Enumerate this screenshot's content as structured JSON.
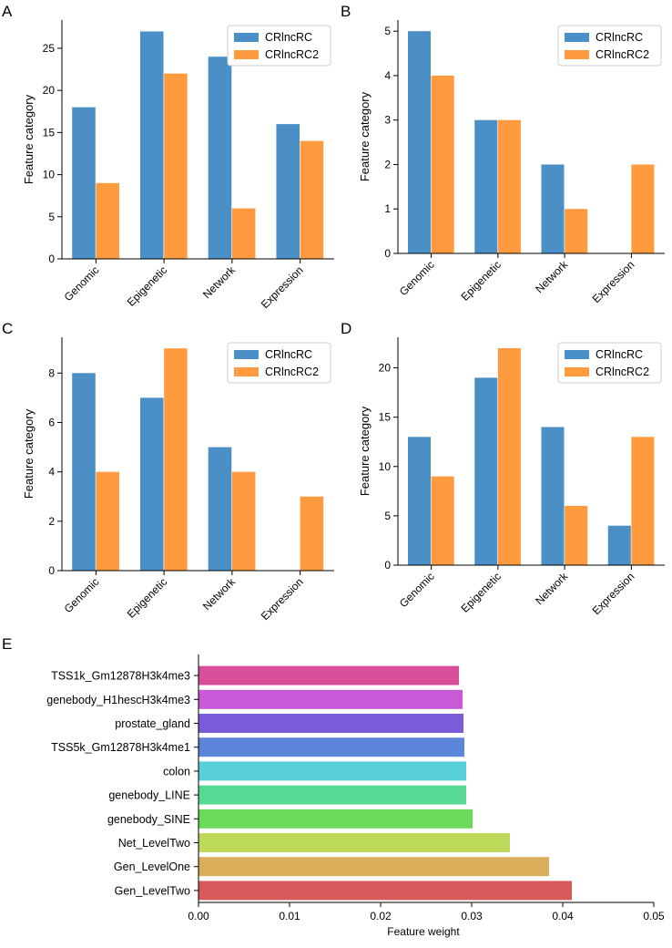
{
  "chart_data": [
    {
      "panel": "A",
      "type": "bar",
      "categories": [
        "Genomic",
        "Epigenetic",
        "Network",
        "Expression"
      ],
      "series": [
        {
          "name": "CRlncRC",
          "values": [
            18,
            27,
            24,
            16
          ],
          "color": "#4a8fc6"
        },
        {
          "name": "CRlncRC2",
          "values": [
            9,
            22,
            6,
            14
          ],
          "color": "#ff9b3e"
        }
      ],
      "ylabel": "Feature category",
      "ylim": [
        0,
        28.35
      ],
      "yticks": [
        0,
        5,
        10,
        15,
        20,
        25
      ],
      "legend": "top-right"
    },
    {
      "panel": "B",
      "type": "bar",
      "categories": [
        "Genomic",
        "Epigenetic",
        "Network",
        "Expression"
      ],
      "series": [
        {
          "name": "CRlncRC",
          "values": [
            5,
            3,
            2,
            0
          ],
          "color": "#4a8fc6"
        },
        {
          "name": "CRlncRC2",
          "values": [
            4,
            3,
            1,
            2
          ],
          "color": "#ff9b3e"
        }
      ],
      "ylabel": "Feature category",
      "ylim": [
        0,
        5.25
      ],
      "yticks": [
        0,
        1,
        2,
        3,
        4,
        5
      ],
      "legend": "top-right"
    },
    {
      "panel": "C",
      "type": "bar",
      "categories": [
        "Genomic",
        "Epigenetic",
        "Network",
        "Expression"
      ],
      "series": [
        {
          "name": "CRlncRC",
          "values": [
            8,
            7,
            5,
            0
          ],
          "color": "#4a8fc6"
        },
        {
          "name": "CRlncRC2",
          "values": [
            4,
            9,
            4,
            3
          ],
          "color": "#ff9b3e"
        }
      ],
      "ylabel": "Feature category",
      "ylim": [
        0,
        9.45
      ],
      "yticks": [
        0,
        2,
        4,
        6,
        8
      ],
      "legend": "top-right"
    },
    {
      "panel": "D",
      "type": "bar",
      "categories": [
        "Genomic",
        "Epigenetic",
        "Network",
        "Expression"
      ],
      "series": [
        {
          "name": "CRlncRC",
          "values": [
            13,
            19,
            14,
            4
          ],
          "color": "#4a8fc6"
        },
        {
          "name": "CRlncRC2",
          "values": [
            9,
            22,
            6,
            13
          ],
          "color": "#ff9b3e"
        }
      ],
      "ylabel": "Feature category",
      "ylim": [
        0,
        23.1
      ],
      "yticks": [
        0,
        5,
        10,
        15,
        20
      ],
      "legend": "top-right"
    },
    {
      "panel": "E",
      "type": "bar",
      "orientation": "horizontal",
      "categories": [
        "TSS1k_Gm12878H3k4me3",
        "genebody_H1hescH3k4me3",
        "prostate_gland",
        "TSS5k_Gm12878H3k4me1",
        "colon",
        "genebody_LINE",
        "genebody_SINE",
        "Net_LevelTwo",
        "Gen_LevelOne",
        "Gen_LevelTwo"
      ],
      "values": [
        0.0286,
        0.029,
        0.0291,
        0.0292,
        0.0294,
        0.0294,
        0.0301,
        0.0342,
        0.0385,
        0.041
      ],
      "colors": [
        "#d9509a",
        "#c85ad8",
        "#7b5bd9",
        "#5b86d9",
        "#58cfd9",
        "#58d993",
        "#6bd95a",
        "#bcd95a",
        "#d9ad5a",
        "#d95a5a"
      ],
      "xlabel": "Feature weight",
      "xlim": [
        0,
        0.05
      ],
      "xticks": [
        "0.00",
        "0.01",
        "0.02",
        "0.03",
        "0.04",
        "0.05"
      ]
    }
  ]
}
